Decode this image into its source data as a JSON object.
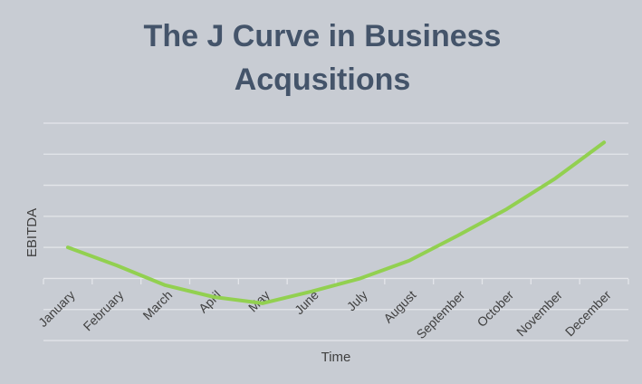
{
  "chart_data": {
    "type": "line",
    "title": "The J Curve in Business Acqusitions",
    "x_label": "Time",
    "y_label": "EBITDA",
    "categories": [
      "January",
      "February",
      "March",
      "April",
      "May",
      "June",
      "July",
      "August",
      "September",
      "October",
      "November",
      "December"
    ],
    "values": [
      3.0,
      2.42,
      1.78,
      1.4,
      1.2,
      1.58,
      2.0,
      2.57,
      3.38,
      4.23,
      5.22,
      6.38
    ],
    "color": "#92d050",
    "ylim": [
      0,
      7
    ],
    "yticks": [
      0,
      1,
      2,
      3,
      4,
      5,
      6,
      7
    ],
    "ytick_labels": false,
    "grid": true
  }
}
